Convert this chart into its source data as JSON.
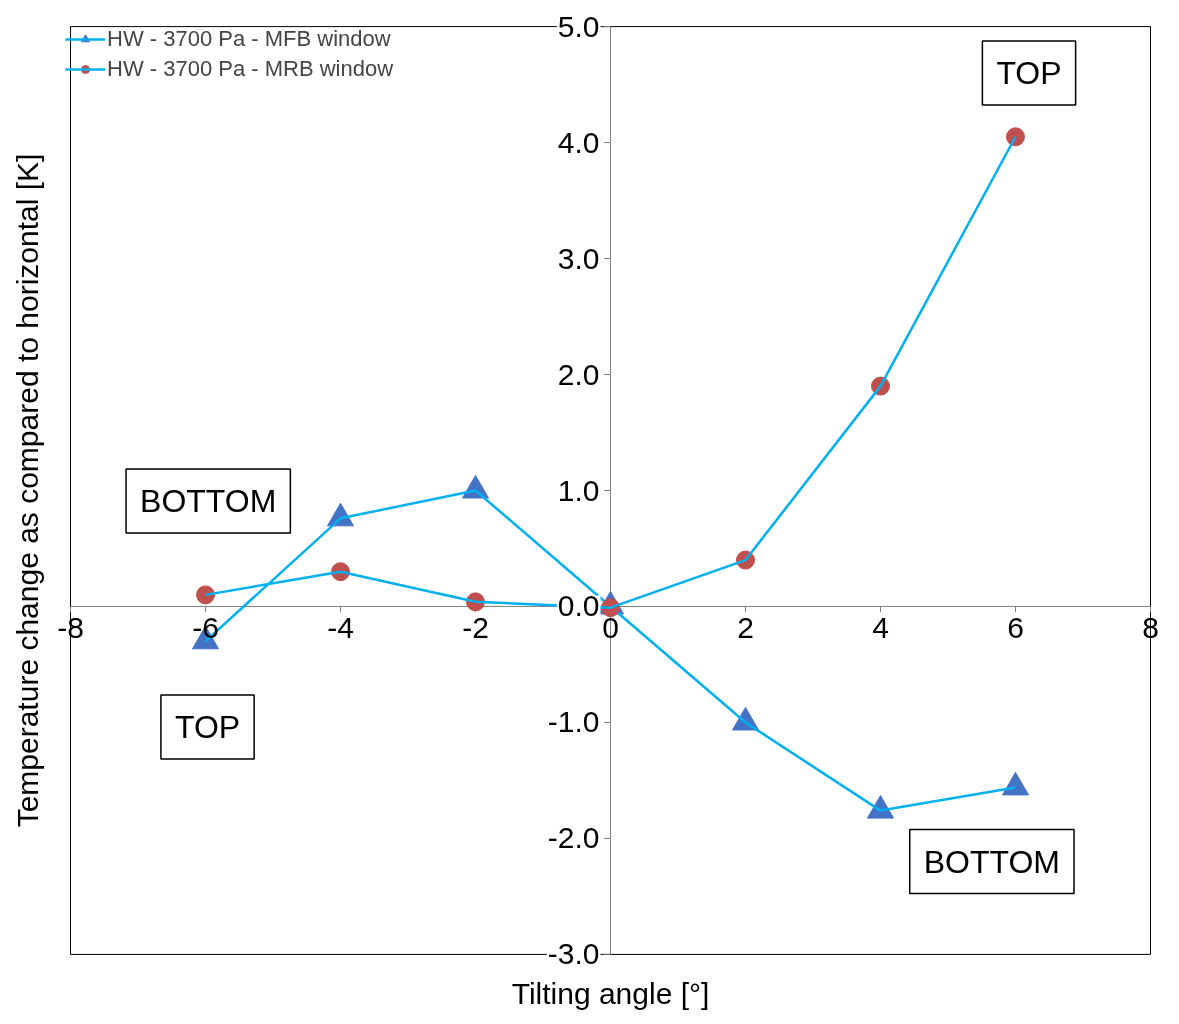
{
  "chart_data": {
    "type": "line",
    "xlabel": "Tilting angle [°]",
    "ylabel": "Temperature change as compared to horizontal [K]",
    "xlim": [
      -8,
      8
    ],
    "ylim": [
      -3,
      5
    ],
    "xticks": [
      -8,
      -6,
      -4,
      -2,
      0,
      2,
      4,
      6,
      8
    ],
    "yticks": [
      {
        "value": -3,
        "label": "-3.0"
      },
      {
        "value": -2,
        "label": "-2.0"
      },
      {
        "value": -1,
        "label": "-1.0"
      },
      {
        "value": 0,
        "label": "0.0"
      },
      {
        "value": 1,
        "label": "1.0"
      },
      {
        "value": 2,
        "label": "2.0"
      },
      {
        "value": 3,
        "label": "3.0"
      },
      {
        "value": 4,
        "label": "4.0"
      },
      {
        "value": 5,
        "label": "5.0"
      }
    ],
    "x": [
      -6,
      -4,
      -2,
      0,
      2,
      4,
      6
    ],
    "series": [
      {
        "name": "HW - 3700 Pa - MFB window",
        "color": "#00b0f0",
        "colors": [
          "#4472c4",
          "#4472c4",
          "#4472c4",
          "#4472c4",
          "#4472c4",
          "#4472c4",
          "#4472c4"
        ],
        "marker": "triangle",
        "values": [
          -0.3,
          0.76,
          1.0,
          0,
          -1.0,
          -1.76,
          -1.56
        ]
      },
      {
        "name": "HW - 3700 Pa - MRB window",
        "color": "#00b0f0",
        "colors": [
          "#c0504d",
          "#c0504d",
          "#c0504d",
          "#c0504d",
          "#c0504d",
          "#c0504d",
          "#c0504d"
        ],
        "marker": "circle",
        "values": [
          0.1,
          0.3,
          0.04,
          -0.01,
          0.4,
          1.9,
          4.05
        ]
      }
    ],
    "annotations": [
      "BOTTOM",
      "TOP",
      "TOP",
      "BOTTOM"
    ],
    "legend": "top left",
    "grid": false
  }
}
